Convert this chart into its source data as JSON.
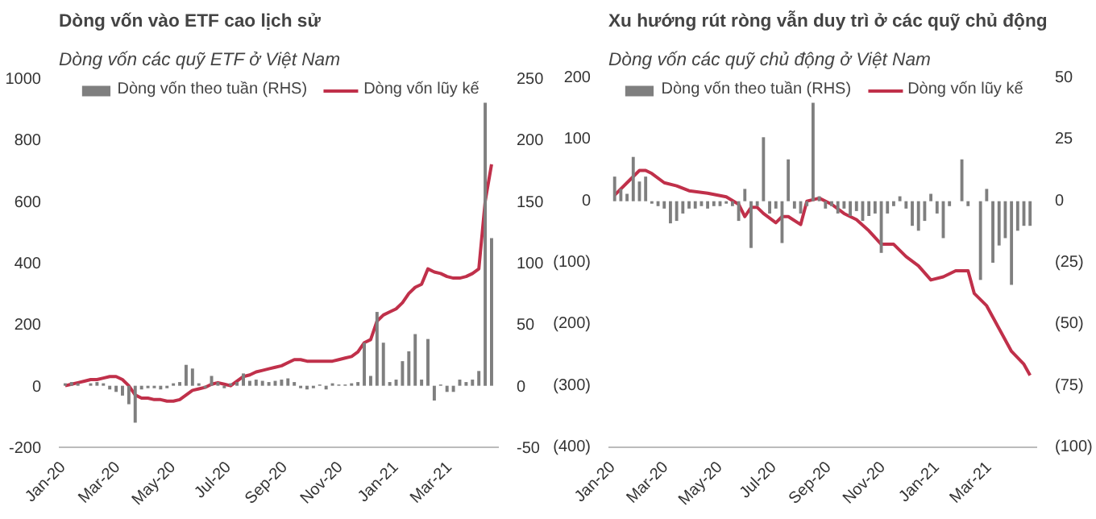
{
  "chart_data": [
    {
      "type": "bar",
      "title": "Dòng vốn vào ETF cao lịch sử",
      "subtitle": "Dòng vốn các quỹ ETF ở Việt Nam",
      "legend": "top",
      "grid": false,
      "x": [
        "2020-01-03",
        "2020-01-10",
        "2020-01-17",
        "2020-01-24",
        "2020-01-31",
        "2020-02-07",
        "2020-02-14",
        "2020-02-21",
        "2020-02-28",
        "2020-03-06",
        "2020-03-13",
        "2020-03-20",
        "2020-03-27",
        "2020-04-03",
        "2020-04-10",
        "2020-04-17",
        "2020-04-24",
        "2020-05-01",
        "2020-05-08",
        "2020-05-15",
        "2020-05-22",
        "2020-05-29",
        "2020-06-05",
        "2020-06-12",
        "2020-06-19",
        "2020-06-26",
        "2020-07-03",
        "2020-07-10",
        "2020-07-17",
        "2020-07-24",
        "2020-07-31",
        "2020-08-07",
        "2020-08-14",
        "2020-08-21",
        "2020-08-28",
        "2020-09-04",
        "2020-09-11",
        "2020-09-18",
        "2020-09-25",
        "2020-10-02",
        "2020-10-09",
        "2020-10-16",
        "2020-10-23",
        "2020-10-30",
        "2020-11-06",
        "2020-11-13",
        "2020-11-20",
        "2020-11-27",
        "2020-12-04",
        "2020-12-11",
        "2020-12-18",
        "2020-12-25",
        "2021-01-01",
        "2021-01-08",
        "2021-01-15",
        "2021-01-22",
        "2021-01-29",
        "2021-02-05",
        "2021-02-12",
        "2021-02-19",
        "2021-02-26",
        "2021-03-05",
        "2021-03-12",
        "2021-03-19",
        "2021-03-26",
        "2021-04-02",
        "2021-04-09",
        "2021-04-16"
      ],
      "xlim": [
        "2019-12-27",
        "2021-04-24"
      ],
      "xticks": [
        {
          "value": "2020-01-01",
          "label": "Jan-20"
        },
        {
          "value": "2020-03-01",
          "label": "Mar-20"
        },
        {
          "value": "2020-05-01",
          "label": "May-20"
        },
        {
          "value": "2020-07-01",
          "label": "Jul-20"
        },
        {
          "value": "2020-09-01",
          "label": "Sep-20"
        },
        {
          "value": "2020-11-01",
          "label": "Nov-20"
        },
        {
          "value": "2021-01-01",
          "label": "Jan-21"
        },
        {
          "value": "2021-03-01",
          "label": "Mar-21"
        }
      ],
      "ylim": [
        -200,
        1000
      ],
      "yticks": [
        -200,
        0,
        200,
        400,
        600,
        800,
        1000
      ],
      "y2lim": [
        -50,
        250
      ],
      "y2ticks": [
        -50,
        0,
        50,
        100,
        150,
        200,
        250
      ],
      "series": [
        {
          "name": "Dòng vốn theo tuần (RHS)",
          "axis": "y2",
          "color": "#7f7f7f",
          "values": [
            2,
            3,
            2,
            0,
            2,
            3,
            2,
            -3,
            -5,
            -8,
            -15,
            -30,
            -3,
            -2,
            -2,
            -3,
            -2,
            2,
            3,
            17,
            14,
            2,
            -2,
            8,
            3,
            -2,
            2,
            3,
            10,
            4,
            5,
            4,
            3,
            4,
            5,
            6,
            3,
            -2,
            -3,
            -2,
            1,
            -3,
            2,
            1,
            1,
            2,
            3,
            35,
            8,
            60,
            35,
            3,
            5,
            20,
            28,
            42,
            5,
            38,
            -12,
            1,
            -5,
            -5,
            5,
            3,
            5,
            12,
            230,
            120
          ]
        },
        {
          "name": "Dòng vốn lũy kế",
          "type": "line",
          "color": "#c0304a",
          "values": [
            0,
            5,
            10,
            15,
            20,
            20,
            25,
            30,
            30,
            20,
            0,
            -30,
            -40,
            -40,
            -45,
            -45,
            -50,
            -50,
            -45,
            -30,
            -15,
            -10,
            -5,
            5,
            10,
            5,
            0,
            15,
            30,
            35,
            45,
            50,
            55,
            60,
            65,
            75,
            85,
            85,
            80,
            80,
            80,
            80,
            80,
            85,
            90,
            95,
            110,
            140,
            150,
            210,
            230,
            240,
            250,
            270,
            300,
            320,
            330,
            380,
            370,
            365,
            355,
            350,
            350,
            355,
            365,
            380,
            600,
            720
          ]
        }
      ]
    },
    {
      "type": "bar",
      "title": "Xu hướng rút ròng vẫn duy trì ở các quỹ chủ động",
      "subtitle": "Dòng vốn các quỹ chủ động ở Việt Nam",
      "legend": "top",
      "grid": false,
      "x": [
        "2020-01-03",
        "2020-01-10",
        "2020-01-17",
        "2020-01-24",
        "2020-01-31",
        "2020-02-07",
        "2020-02-14",
        "2020-02-21",
        "2020-02-28",
        "2020-03-06",
        "2020-03-13",
        "2020-03-20",
        "2020-03-27",
        "2020-04-03",
        "2020-04-10",
        "2020-04-17",
        "2020-04-24",
        "2020-05-01",
        "2020-05-08",
        "2020-05-15",
        "2020-05-22",
        "2020-05-29",
        "2020-06-05",
        "2020-06-12",
        "2020-06-19",
        "2020-06-26",
        "2020-07-03",
        "2020-07-10",
        "2020-07-17",
        "2020-07-24",
        "2020-07-31",
        "2020-08-07",
        "2020-08-14",
        "2020-08-21",
        "2020-08-28",
        "2020-09-04",
        "2020-09-11",
        "2020-09-18",
        "2020-09-25",
        "2020-10-02",
        "2020-10-09",
        "2020-10-16",
        "2020-10-23",
        "2020-10-30",
        "2020-11-06",
        "2020-11-13",
        "2020-11-20",
        "2020-11-27",
        "2020-12-04",
        "2020-12-11",
        "2020-12-18",
        "2020-12-25",
        "2021-01-01",
        "2021-01-08",
        "2021-01-15",
        "2021-01-22",
        "2021-01-29",
        "2021-02-05",
        "2021-02-12",
        "2021-02-19",
        "2021-02-26",
        "2021-03-05",
        "2021-03-12",
        "2021-03-19",
        "2021-03-26",
        "2021-04-02",
        "2021-04-09",
        "2021-04-16"
      ],
      "xlim": [
        "2019-12-27",
        "2021-04-24"
      ],
      "xticks": [
        {
          "value": "2020-01-01",
          "label": "Jan-20"
        },
        {
          "value": "2020-03-01",
          "label": "Mar-20"
        },
        {
          "value": "2020-05-01",
          "label": "May-20"
        },
        {
          "value": "2020-07-01",
          "label": "Jul-20"
        },
        {
          "value": "2020-09-01",
          "label": "Sep-20"
        },
        {
          "value": "2020-11-01",
          "label": "Nov-20"
        },
        {
          "value": "2021-01-01",
          "label": "Jan-21"
        },
        {
          "value": "2021-03-01",
          "label": "Mar-21"
        }
      ],
      "ylim": [
        -400,
        200
      ],
      "yticks": [
        {
          "value": -400,
          "label": "(400)"
        },
        {
          "value": -300,
          "label": "(300)"
        },
        {
          "value": -200,
          "label": "(200)"
        },
        {
          "value": -100,
          "label": "(100)"
        },
        0,
        100,
        200
      ],
      "y2lim": [
        -100,
        50
      ],
      "y2ticks": [
        {
          "value": -100,
          "label": "(100)"
        },
        {
          "value": -75,
          "label": "(75)"
        },
        {
          "value": -50,
          "label": "(50)"
        },
        {
          "value": -25,
          "label": "(25)"
        },
        0,
        25,
        50
      ],
      "series": [
        {
          "name": "Dòng vốn theo tuần (RHS)",
          "axis": "y2",
          "color": "#7f7f7f",
          "values": [
            10,
            5,
            3,
            18,
            8,
            10,
            -1,
            -2,
            -3,
            -9,
            -8,
            -5,
            -3,
            -3,
            -2,
            -3,
            -2,
            -2,
            -1,
            -2,
            -8,
            5,
            -19,
            -2,
            26,
            -5,
            -3,
            -17,
            17,
            -3,
            -5,
            -2,
            40,
            2,
            -3,
            -2,
            -5,
            -3,
            -6,
            -4,
            -8,
            -6,
            -5,
            -21,
            -5,
            -2,
            2,
            -3,
            -10,
            -12,
            -8,
            3,
            -5,
            -15,
            -2,
            0,
            17,
            -2,
            0,
            -32,
            5,
            -25,
            -18,
            -15,
            -34,
            -12,
            -10,
            -10
          ]
        },
        {
          "name": "Dòng vốn lũy kế",
          "type": "line",
          "color": "#c0304a",
          "x": [
            "2020-01-03",
            "2020-01-17",
            "2020-01-31",
            "2020-02-07",
            "2020-02-14",
            "2020-02-28",
            "2020-03-13",
            "2020-03-27",
            "2020-04-17",
            "2020-05-08",
            "2020-05-22",
            "2020-05-29",
            "2020-06-05",
            "2020-06-12",
            "2020-06-19",
            "2020-07-03",
            "2020-07-10",
            "2020-07-17",
            "2020-07-31",
            "2020-08-07",
            "2020-08-21",
            "2020-09-04",
            "2020-09-18",
            "2020-10-02",
            "2020-10-16",
            "2020-10-30",
            "2020-11-13",
            "2020-11-27",
            "2020-12-11",
            "2020-12-25",
            "2021-01-08",
            "2021-01-22",
            "2021-02-05",
            "2021-02-12",
            "2021-02-26",
            "2021-03-12",
            "2021-03-26",
            "2021-04-09",
            "2021-04-16"
          ],
          "values": [
            10,
            30,
            50,
            50,
            45,
            30,
            25,
            17,
            13,
            7,
            -5,
            -25,
            -10,
            -10,
            -20,
            -35,
            -25,
            -25,
            -38,
            0,
            5,
            -5,
            -20,
            -30,
            -48,
            -70,
            -70,
            -90,
            -105,
            -128,
            -123,
            -113,
            -113,
            -150,
            -170,
            -207,
            -244,
            -265,
            -283
          ]
        }
      ]
    }
  ]
}
